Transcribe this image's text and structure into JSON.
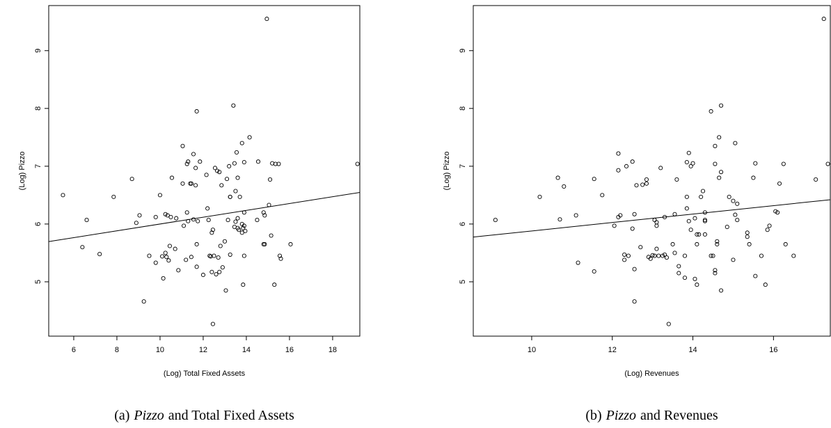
{
  "chart_data": [
    {
      "type": "scatter",
      "xlabel": "(Log) Total Fixed Assets",
      "ylabel": "(Log) Pizzo",
      "caption": {
        "label": "(a)",
        "italic": "Pizzo",
        "text": "and Total Fixed Assets"
      },
      "xlim": [
        4.84,
        19.26
      ],
      "ylim": [
        4.06,
        9.78
      ],
      "xticks": [
        6,
        8,
        10,
        12,
        14,
        16,
        18
      ],
      "yticks": [
        5,
        6,
        7,
        8,
        9
      ],
      "fit": {
        "intercept": 5.41,
        "slope": 0.059
      },
      "x": [
        5.5,
        6.4,
        6.6,
        7.2,
        7.85,
        8.7,
        8.9,
        9.05,
        9.25,
        9.5,
        9.8,
        9.8,
        10.0,
        10.1,
        10.15,
        10.25,
        10.25,
        10.3,
        10.35,
        10.4,
        10.45,
        10.55,
        10.5,
        10.7,
        10.75,
        10.85,
        11.05,
        11.05,
        11.1,
        11.2,
        11.25,
        11.25,
        11.3,
        11.3,
        11.4,
        11.45,
        11.45,
        11.55,
        11.55,
        11.65,
        11.65,
        11.7,
        11.7,
        11.7,
        11.75,
        11.85,
        12.0,
        12.15,
        12.2,
        12.25,
        12.3,
        12.35,
        12.4,
        12.4,
        12.45,
        12.45,
        12.5,
        12.55,
        12.6,
        12.65,
        12.7,
        12.75,
        12.75,
        12.8,
        12.85,
        12.9,
        13.0,
        13.05,
        13.1,
        13.15,
        13.2,
        13.25,
        13.25,
        13.25,
        13.4,
        13.45,
        13.45,
        13.5,
        13.5,
        13.55,
        13.6,
        13.6,
        13.6,
        13.65,
        13.7,
        13.8,
        13.8,
        13.8,
        13.85,
        13.85,
        13.9,
        13.9,
        13.9,
        13.9,
        13.95,
        14.15,
        14.55,
        14.5,
        14.8,
        14.8,
        14.85,
        14.85,
        14.95,
        15.05,
        15.1,
        15.15,
        15.2,
        15.3,
        15.35,
        15.5,
        15.55,
        15.6,
        16.05,
        19.15
      ],
      "y": [
        6.5,
        5.6,
        6.07,
        5.48,
        6.47,
        6.78,
        6.02,
        6.15,
        4.66,
        5.45,
        6.12,
        5.33,
        6.5,
        5.44,
        5.06,
        6.17,
        5.5,
        5.43,
        6.15,
        5.37,
        5.62,
        6.8,
        6.12,
        5.57,
        6.1,
        5.2,
        7.35,
        6.7,
        5.97,
        5.38,
        6.2,
        7.04,
        7.08,
        6.05,
        6.7,
        6.7,
        5.43,
        6.08,
        7.21,
        6.97,
        6.67,
        7.95,
        5.65,
        5.26,
        6.05,
        7.08,
        5.12,
        6.85,
        6.27,
        6.07,
        5.45,
        5.44,
        5.17,
        5.85,
        5.9,
        4.27,
        5.45,
        6.97,
        5.13,
        6.92,
        5.42,
        5.17,
        6.9,
        5.62,
        6.67,
        5.25,
        5.7,
        4.85,
        6.78,
        6.07,
        7.0,
        6.47,
        6.47,
        5.47,
        8.05,
        5.95,
        7.05,
        6.57,
        6.04,
        7.24,
        6.8,
        6.1,
        5.93,
        5.9,
        6.47,
        7.4,
        5.85,
        6.0,
        4.95,
        5.93,
        5.97,
        6.2,
        7.07,
        5.45,
        5.88,
        7.5,
        7.08,
        6.07,
        5.65,
        6.2,
        6.15,
        5.65,
        9.55,
        6.33,
        6.77,
        5.8,
        7.05,
        4.95,
        7.04,
        7.04,
        5.45,
        5.4,
        5.65,
        7.04
      ]
    },
    {
      "type": "scatter",
      "xlabel": "(Log) Revenues",
      "ylabel": "(Log) Pizzo",
      "caption": {
        "label": "(b)",
        "italic": "Pizzo",
        "text": "and Revenues"
      },
      "xlim": [
        8.55,
        17.41
      ],
      "ylim": [
        4.06,
        9.78
      ],
      "xticks": [
        10,
        12,
        14,
        16
      ],
      "yticks": [
        5,
        6,
        7,
        8,
        9
      ],
      "fit": {
        "intercept": 5.15,
        "slope": 0.073
      },
      "x": [
        9.1,
        10.2,
        10.65,
        10.7,
        10.8,
        11.1,
        11.15,
        11.55,
        11.55,
        11.75,
        12.05,
        12.15,
        12.15,
        12.15,
        12.2,
        12.3,
        12.3,
        12.35,
        12.4,
        12.5,
        12.5,
        12.55,
        12.55,
        12.55,
        12.6,
        12.7,
        12.75,
        12.85,
        12.85,
        12.9,
        12.95,
        13.0,
        13.05,
        13.05,
        13.1,
        13.1,
        13.1,
        13.15,
        13.2,
        13.25,
        13.3,
        13.3,
        13.35,
        13.4,
        13.5,
        13.55,
        13.55,
        13.6,
        13.65,
        13.65,
        13.8,
        13.8,
        13.85,
        13.85,
        13.85,
        13.9,
        13.9,
        13.95,
        13.95,
        14.0,
        14.05,
        14.05,
        14.1,
        14.1,
        14.1,
        14.15,
        14.2,
        14.25,
        14.3,
        14.3,
        14.3,
        14.3,
        14.45,
        14.45,
        14.5,
        14.55,
        14.55,
        14.55,
        14.55,
        14.6,
        14.6,
        14.65,
        14.65,
        14.7,
        14.7,
        14.7,
        14.85,
        14.9,
        15.0,
        15.0,
        15.05,
        15.05,
        15.1,
        15.1,
        15.35,
        15.35,
        15.4,
        15.5,
        15.55,
        15.55,
        15.7,
        15.8,
        15.85,
        15.9,
        16.05,
        16.1,
        16.15,
        16.25,
        16.3,
        16.5,
        17.05,
        17.25,
        17.35
      ],
      "y": [
        6.07,
        6.47,
        6.8,
        6.08,
        6.65,
        6.15,
        5.33,
        5.18,
        6.78,
        6.5,
        5.97,
        7.22,
        6.93,
        6.12,
        6.15,
        5.47,
        5.38,
        7.0,
        5.45,
        5.92,
        7.08,
        5.22,
        6.17,
        4.66,
        6.67,
        5.6,
        6.68,
        6.77,
        6.7,
        5.43,
        5.4,
        5.46,
        5.45,
        6.07,
        5.97,
        6.03,
        5.57,
        5.45,
        6.97,
        5.45,
        5.47,
        6.12,
        5.42,
        4.27,
        5.65,
        6.17,
        5.5,
        6.77,
        5.27,
        5.15,
        5.45,
        5.07,
        7.07,
        6.27,
        6.47,
        7.23,
        6.05,
        5.9,
        7.0,
        7.05,
        6.1,
        5.05,
        5.82,
        5.65,
        4.95,
        5.82,
        6.47,
        6.57,
        6.07,
        6.2,
        6.05,
        5.82,
        5.45,
        7.95,
        5.45,
        5.2,
        5.15,
        7.35,
        7.04,
        5.7,
        5.65,
        6.8,
        7.5,
        4.85,
        6.9,
        8.05,
        5.95,
        6.47,
        6.4,
        5.38,
        7.4,
        6.16,
        6.35,
        6.07,
        5.85,
        5.78,
        5.65,
        6.8,
        7.05,
        5.1,
        5.45,
        4.95,
        5.9,
        5.97,
        6.22,
        6.2,
        6.7,
        7.04,
        5.65,
        5.45,
        6.77,
        9.55,
        7.04
      ]
    }
  ]
}
